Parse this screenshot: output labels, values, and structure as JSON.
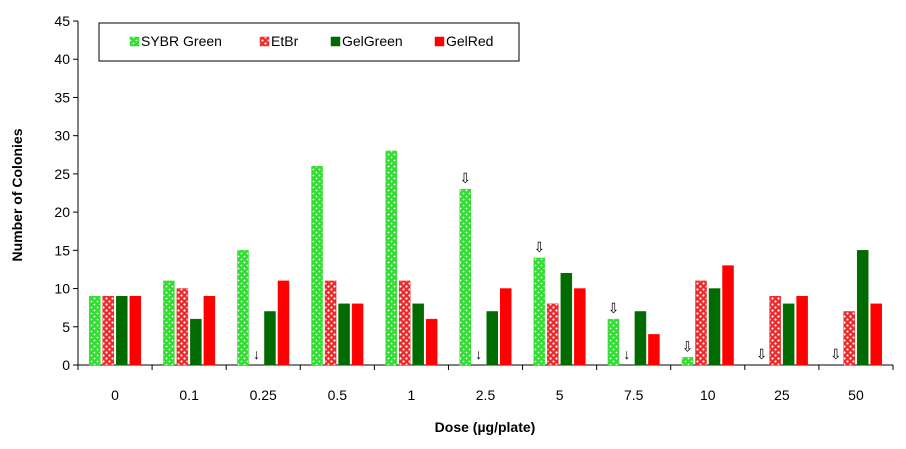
{
  "chart_data": {
    "type": "bar",
    "xlabel": "Dose (µg/plate)",
    "ylabel": "Number of Colonies",
    "ylim": [
      0,
      45
    ],
    "yticks": [
      0,
      5,
      10,
      15,
      20,
      25,
      30,
      35,
      40,
      45
    ],
    "grid": false,
    "legend_position": "top-left",
    "categories": [
      "0",
      "0.1",
      "0.25",
      "0.5",
      "1",
      "2.5",
      "5",
      "7.5",
      "10",
      "25",
      "50"
    ],
    "series": [
      {
        "name": "SYBR Green",
        "color": "#33dd33",
        "pattern": "dotted",
        "values": [
          9,
          11,
          15,
          26,
          28,
          23,
          14,
          6,
          1,
          null,
          null
        ]
      },
      {
        "name": "EtBr",
        "color": "#e82a2a",
        "pattern": "dotted",
        "values": [
          9,
          10,
          null,
          11,
          11,
          null,
          8,
          null,
          11,
          9,
          7
        ]
      },
      {
        "name": "GelGreen",
        "color": "#006b00",
        "pattern": "solid",
        "values": [
          9,
          6,
          7,
          8,
          8,
          7,
          12,
          7,
          10,
          8,
          15
        ]
      },
      {
        "name": "GelRed",
        "color": "#ff0000",
        "pattern": "solid",
        "values": [
          9,
          9,
          11,
          8,
          6,
          10,
          10,
          4,
          13,
          9,
          8
        ]
      }
    ],
    "annotations": [
      {
        "symbol": "↓",
        "category": "0.25",
        "series": "EtBr"
      },
      {
        "symbol": "↓",
        "category": "2.5",
        "series": "EtBr"
      },
      {
        "symbol": "↓",
        "category": "7.5",
        "series": "EtBr"
      },
      {
        "symbol": "⇩",
        "category": "2.5",
        "series": "SYBR Green",
        "above": 23
      },
      {
        "symbol": "⇩",
        "category": "5",
        "series": "SYBR Green",
        "above": 14
      },
      {
        "symbol": "⇩",
        "category": "7.5",
        "series": "SYBR Green",
        "above": 6
      },
      {
        "symbol": "⇩",
        "category": "10",
        "series": "SYBR Green",
        "above": 1
      },
      {
        "symbol": "⇩",
        "category": "25",
        "series": "SYBR Green",
        "above": 0
      },
      {
        "symbol": "⇩",
        "category": "50",
        "series": "SYBR Green",
        "above": 0
      }
    ]
  }
}
